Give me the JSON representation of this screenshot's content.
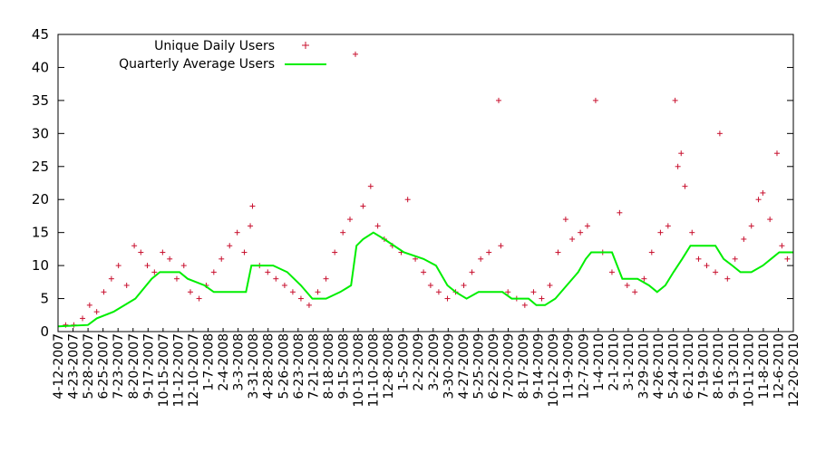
{
  "chart_data": {
    "type": "scatter",
    "ylim": [
      0,
      45
    ],
    "y_ticks": [
      0,
      5,
      10,
      15,
      20,
      25,
      30,
      35,
      40,
      45
    ],
    "grid": false,
    "legend_position": "top-left",
    "x_domain": [
      "2007-04-21",
      "2010-12-31"
    ],
    "x_tick_labels": [
      "4-12-2007",
      "4-23-2007",
      "5-28-2007",
      "6-25-2007",
      "7-23-2007",
      "8-20-2007",
      "9-17-2007",
      "10-15-2007",
      "11-12-2007",
      "12-10-2007",
      "1-7-2008",
      "2-4-2008",
      "3-3-2008",
      "3-31-2008",
      "4-28-2008",
      "5-26-2008",
      "6-23-2008",
      "7-21-2008",
      "8-18-2008",
      "9-15-2008",
      "10-13-2008",
      "11-10-2008",
      "12-8-2008",
      "1-5-2009",
      "2-2-2009",
      "3-2-2009",
      "3-30-2009",
      "4-27-2009",
      "5-25-2009",
      "6-22-2009",
      "7-20-2009",
      "8-17-2009",
      "9-14-2009",
      "10-12-2009",
      "11-9-2009",
      "12-7-2009",
      "1-4-2010",
      "2-1-2010",
      "3-1-2010",
      "3-29-2010",
      "4-26-2010",
      "5-24-2010",
      "6-21-2010",
      "7-19-2010",
      "8-16-2010",
      "9-13-2010",
      "10-11-2010",
      "11-8-2010",
      "12-6-2010",
      "12-20-2010"
    ],
    "series": [
      {
        "name": "Unique Daily Users",
        "kind": "points",
        "marker": "+",
        "color": "#c8102e",
        "points": [
          [
            "2007-05-05",
            1
          ],
          [
            "2007-05-20",
            1
          ],
          [
            "2007-06-05",
            2
          ],
          [
            "2007-06-18",
            4
          ],
          [
            "2007-07-01",
            3
          ],
          [
            "2007-07-14",
            6
          ],
          [
            "2007-07-28",
            8
          ],
          [
            "2007-08-10",
            10
          ],
          [
            "2007-08-25",
            7
          ],
          [
            "2007-09-08",
            13
          ],
          [
            "2007-09-20",
            12
          ],
          [
            "2007-10-02",
            10
          ],
          [
            "2007-10-15",
            9
          ],
          [
            "2007-10-30",
            12
          ],
          [
            "2007-11-12",
            11
          ],
          [
            "2007-11-25",
            8
          ],
          [
            "2007-12-08",
            10
          ],
          [
            "2007-12-20",
            6
          ],
          [
            "2008-01-05",
            5
          ],
          [
            "2008-01-18",
            7
          ],
          [
            "2008-02-01",
            9
          ],
          [
            "2008-02-15",
            11
          ],
          [
            "2008-03-01",
            13
          ],
          [
            "2008-03-15",
            15
          ],
          [
            "2008-03-28",
            12
          ],
          [
            "2008-04-08",
            16
          ],
          [
            "2008-04-12",
            19
          ],
          [
            "2008-04-25",
            10
          ],
          [
            "2008-05-10",
            9
          ],
          [
            "2008-05-25",
            8
          ],
          [
            "2008-06-10",
            7
          ],
          [
            "2008-06-25",
            6
          ],
          [
            "2008-07-10",
            5
          ],
          [
            "2008-07-25",
            4
          ],
          [
            "2008-08-10",
            6
          ],
          [
            "2008-08-25",
            8
          ],
          [
            "2008-09-10",
            12
          ],
          [
            "2008-09-25",
            15
          ],
          [
            "2008-10-08",
            17
          ],
          [
            "2008-10-18",
            42
          ],
          [
            "2008-11-01",
            19
          ],
          [
            "2008-11-15",
            22
          ],
          [
            "2008-11-28",
            16
          ],
          [
            "2008-12-10",
            14
          ],
          [
            "2008-12-25",
            13
          ],
          [
            "2009-01-10",
            12
          ],
          [
            "2009-01-22",
            20
          ],
          [
            "2009-02-05",
            11
          ],
          [
            "2009-02-20",
            9
          ],
          [
            "2009-03-05",
            7
          ],
          [
            "2009-03-20",
            6
          ],
          [
            "2009-04-05",
            5
          ],
          [
            "2009-04-20",
            6
          ],
          [
            "2009-05-05",
            7
          ],
          [
            "2009-05-20",
            9
          ],
          [
            "2009-06-05",
            11
          ],
          [
            "2009-06-20",
            12
          ],
          [
            "2009-07-08",
            35
          ],
          [
            "2009-07-12",
            13
          ],
          [
            "2009-07-25",
            6
          ],
          [
            "2009-08-10",
            5
          ],
          [
            "2009-08-25",
            4
          ],
          [
            "2009-09-10",
            6
          ],
          [
            "2009-09-25",
            5
          ],
          [
            "2009-10-10",
            7
          ],
          [
            "2009-10-25",
            12
          ],
          [
            "2009-11-08",
            17
          ],
          [
            "2009-11-20",
            14
          ],
          [
            "2009-12-05",
            15
          ],
          [
            "2009-12-18",
            16
          ],
          [
            "2010-01-02",
            35
          ],
          [
            "2010-01-15",
            12
          ],
          [
            "2010-02-01",
            9
          ],
          [
            "2010-02-15",
            18
          ],
          [
            "2010-03-01",
            7
          ],
          [
            "2010-03-15",
            6
          ],
          [
            "2010-04-01",
            8
          ],
          [
            "2010-04-15",
            12
          ],
          [
            "2010-05-01",
            15
          ],
          [
            "2010-05-15",
            16
          ],
          [
            "2010-05-28",
            35
          ],
          [
            "2010-06-02",
            25
          ],
          [
            "2010-06-08",
            27
          ],
          [
            "2010-06-15",
            22
          ],
          [
            "2010-06-28",
            15
          ],
          [
            "2010-07-10",
            11
          ],
          [
            "2010-07-25",
            10
          ],
          [
            "2010-08-10",
            9
          ],
          [
            "2010-08-18",
            30
          ],
          [
            "2010-09-01",
            8
          ],
          [
            "2010-09-15",
            11
          ],
          [
            "2010-10-01",
            14
          ],
          [
            "2010-10-15",
            16
          ],
          [
            "2010-10-28",
            20
          ],
          [
            "2010-11-05",
            21
          ],
          [
            "2010-11-18",
            17
          ],
          [
            "2010-12-01",
            27
          ],
          [
            "2010-12-10",
            13
          ],
          [
            "2010-12-20",
            11
          ]
        ]
      },
      {
        "name": "Quarterly Average Users",
        "kind": "line",
        "color": "#00ee00",
        "points": [
          [
            "2007-04-21",
            0.8
          ],
          [
            "2007-06-15",
            1
          ],
          [
            "2007-07-01",
            2
          ],
          [
            "2007-08-01",
            3
          ],
          [
            "2007-09-10",
            5
          ],
          [
            "2007-10-10",
            8
          ],
          [
            "2007-10-25",
            9
          ],
          [
            "2007-11-30",
            9
          ],
          [
            "2007-12-15",
            8
          ],
          [
            "2008-01-15",
            7
          ],
          [
            "2008-02-01",
            6
          ],
          [
            "2008-03-31",
            6
          ],
          [
            "2008-04-10",
            10
          ],
          [
            "2008-05-20",
            10
          ],
          [
            "2008-06-15",
            9
          ],
          [
            "2008-07-10",
            7
          ],
          [
            "2008-07-31",
            5
          ],
          [
            "2008-08-25",
            5
          ],
          [
            "2008-09-20",
            6
          ],
          [
            "2008-10-10",
            7
          ],
          [
            "2008-10-20",
            13
          ],
          [
            "2008-11-01",
            14
          ],
          [
            "2008-11-20",
            15
          ],
          [
            "2008-12-10",
            14
          ],
          [
            "2009-01-15",
            12
          ],
          [
            "2009-02-20",
            11
          ],
          [
            "2009-03-15",
            10
          ],
          [
            "2009-04-05",
            7
          ],
          [
            "2009-04-20",
            6
          ],
          [
            "2009-05-10",
            5
          ],
          [
            "2009-06-01",
            6
          ],
          [
            "2009-07-15",
            6
          ],
          [
            "2009-08-01",
            5
          ],
          [
            "2009-09-01",
            5
          ],
          [
            "2009-09-15",
            4
          ],
          [
            "2009-10-01",
            4
          ],
          [
            "2009-10-20",
            5
          ],
          [
            "2009-11-10",
            7
          ],
          [
            "2009-12-01",
            9
          ],
          [
            "2009-12-15",
            11
          ],
          [
            "2009-12-25",
            12
          ],
          [
            "2010-02-01",
            12
          ],
          [
            "2010-02-20",
            8
          ],
          [
            "2010-03-20",
            8
          ],
          [
            "2010-04-10",
            7
          ],
          [
            "2010-04-25",
            6
          ],
          [
            "2010-05-10",
            7
          ],
          [
            "2010-05-25",
            9
          ],
          [
            "2010-06-10",
            11
          ],
          [
            "2010-06-25",
            13
          ],
          [
            "2010-08-10",
            13
          ],
          [
            "2010-08-25",
            11
          ],
          [
            "2010-09-10",
            10
          ],
          [
            "2010-09-25",
            9
          ],
          [
            "2010-10-15",
            9
          ],
          [
            "2010-11-05",
            10
          ],
          [
            "2010-11-20",
            11
          ],
          [
            "2010-12-05",
            12
          ],
          [
            "2010-12-31",
            12
          ]
        ]
      }
    ]
  }
}
